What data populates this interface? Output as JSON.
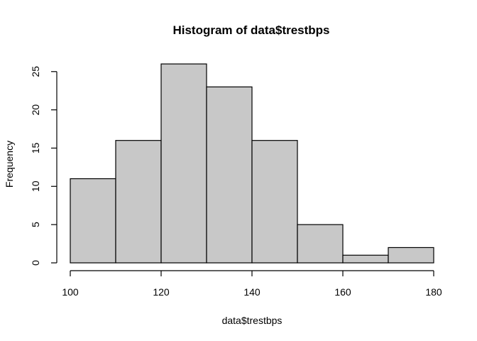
{
  "chart_data": {
    "type": "bar",
    "title": "Histogram of data$trestbps",
    "xlabel": "data$trestbps",
    "ylabel": "Frequency",
    "bins": [
      {
        "start": 100,
        "end": 110,
        "count": 11
      },
      {
        "start": 110,
        "end": 120,
        "count": 16
      },
      {
        "start": 120,
        "end": 130,
        "count": 26
      },
      {
        "start": 130,
        "end": 140,
        "count": 23
      },
      {
        "start": 140,
        "end": 150,
        "count": 16
      },
      {
        "start": 150,
        "end": 160,
        "count": 5
      },
      {
        "start": 160,
        "end": 170,
        "count": 1
      },
      {
        "start": 170,
        "end": 180,
        "count": 2
      }
    ],
    "xlim": [
      100,
      180
    ],
    "ylim": [
      0,
      26
    ],
    "x_ticks": [
      100,
      120,
      140,
      160,
      180
    ],
    "y_ticks": [
      0,
      5,
      10,
      15,
      20,
      25
    ],
    "bar_fill": "#c8c8c8",
    "grid": false
  }
}
